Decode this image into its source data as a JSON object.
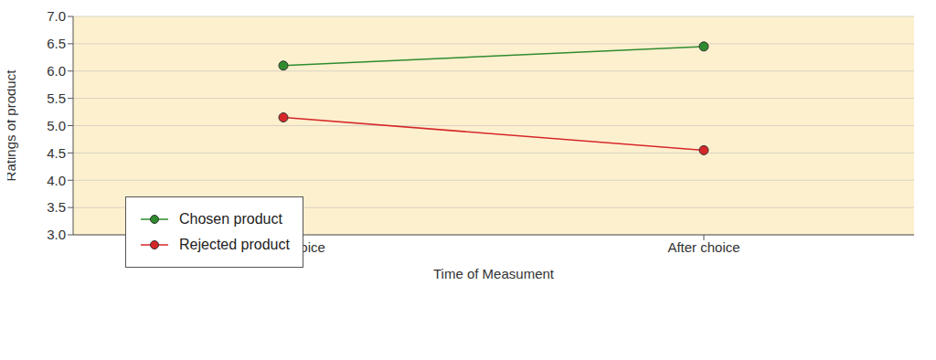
{
  "chart_data": {
    "type": "line",
    "x_label": "Time of Measument",
    "y_label": "Ratings of product",
    "categories": [
      "Before choice",
      "After choice"
    ],
    "series": [
      {
        "name": "Chosen product",
        "color": "#2e8b2e",
        "marker": "circle",
        "values": [
          6.1,
          6.45
        ]
      },
      {
        "name": "Rejected product",
        "color": "#d62728",
        "marker": "circle",
        "values": [
          5.15,
          4.55
        ]
      }
    ],
    "ylim": [
      3,
      7
    ],
    "yticks": [
      {
        "value": 3,
        "label": "3.0"
      },
      3.5,
      {
        "value": 4,
        "label": "4.0"
      },
      4.5,
      {
        "value": 5,
        "label": "5.0"
      },
      5.5,
      {
        "value": 6,
        "label": "6.0"
      },
      6.5,
      {
        "value": 7,
        "label": "7.0"
      }
    ],
    "grid": true,
    "legend": "lower left"
  }
}
